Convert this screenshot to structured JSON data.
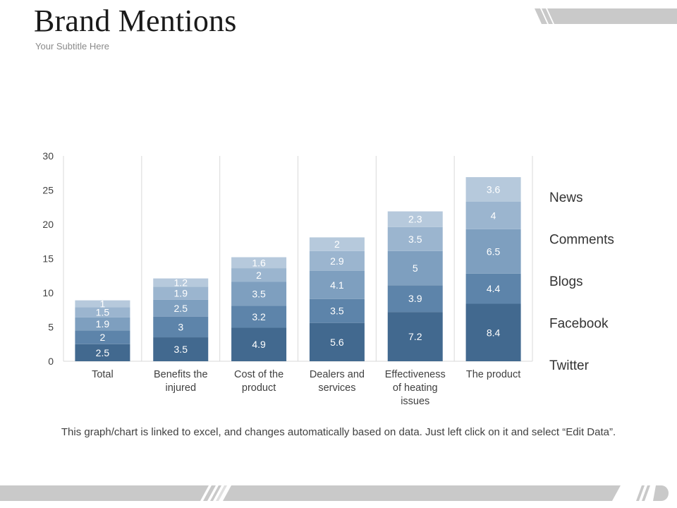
{
  "slide": {
    "title": "Brand Mentions",
    "subtitle": "Your Subtitle Here",
    "footnote": "This graph/chart is linked to excel, and changes automatically based on data. Just left click on it and select “Edit Data”."
  },
  "colors": {
    "twitter": "#42698f",
    "facebook": "#5d84aa",
    "blogs": "#7e9fbf",
    "comments": "#9bb5cf",
    "news": "#b6c9dc",
    "gridline": "#d9d9d9",
    "deco_bar": "#c9c9c9"
  },
  "chart_data": {
    "type": "bar",
    "stacked": true,
    "categories": [
      [
        "Total"
      ],
      [
        "Benefits the",
        "injured"
      ],
      [
        "Cost of the",
        "product"
      ],
      [
        "Dealers and",
        "services"
      ],
      [
        "Effectiveness",
        "of heating",
        "issues"
      ],
      [
        "The product"
      ]
    ],
    "series": [
      {
        "name": "Twitter",
        "color_key": "twitter",
        "values": [
          2.5,
          3.5,
          4.9,
          5.6,
          7.2,
          8.4
        ]
      },
      {
        "name": "Facebook",
        "color_key": "facebook",
        "values": [
          2,
          3,
          3.2,
          3.5,
          3.9,
          4.4
        ]
      },
      {
        "name": "Blogs",
        "color_key": "blogs",
        "values": [
          1.9,
          2.5,
          3.5,
          4.1,
          5,
          6.5
        ]
      },
      {
        "name": "Comments",
        "color_key": "comments",
        "values": [
          1.5,
          1.9,
          2,
          2.9,
          3.5,
          4
        ]
      },
      {
        "name": "News",
        "color_key": "news",
        "values": [
          1,
          1.2,
          1.6,
          2,
          2.3,
          3.6
        ]
      }
    ],
    "legend_order": [
      "News",
      "Comments",
      "Blogs",
      "Facebook",
      "Twitter"
    ],
    "legend_position": "right",
    "ylim": [
      0,
      30
    ],
    "yticks": [
      0,
      5,
      10,
      15,
      20,
      25,
      30
    ],
    "grid": "vertical separators between categories"
  }
}
